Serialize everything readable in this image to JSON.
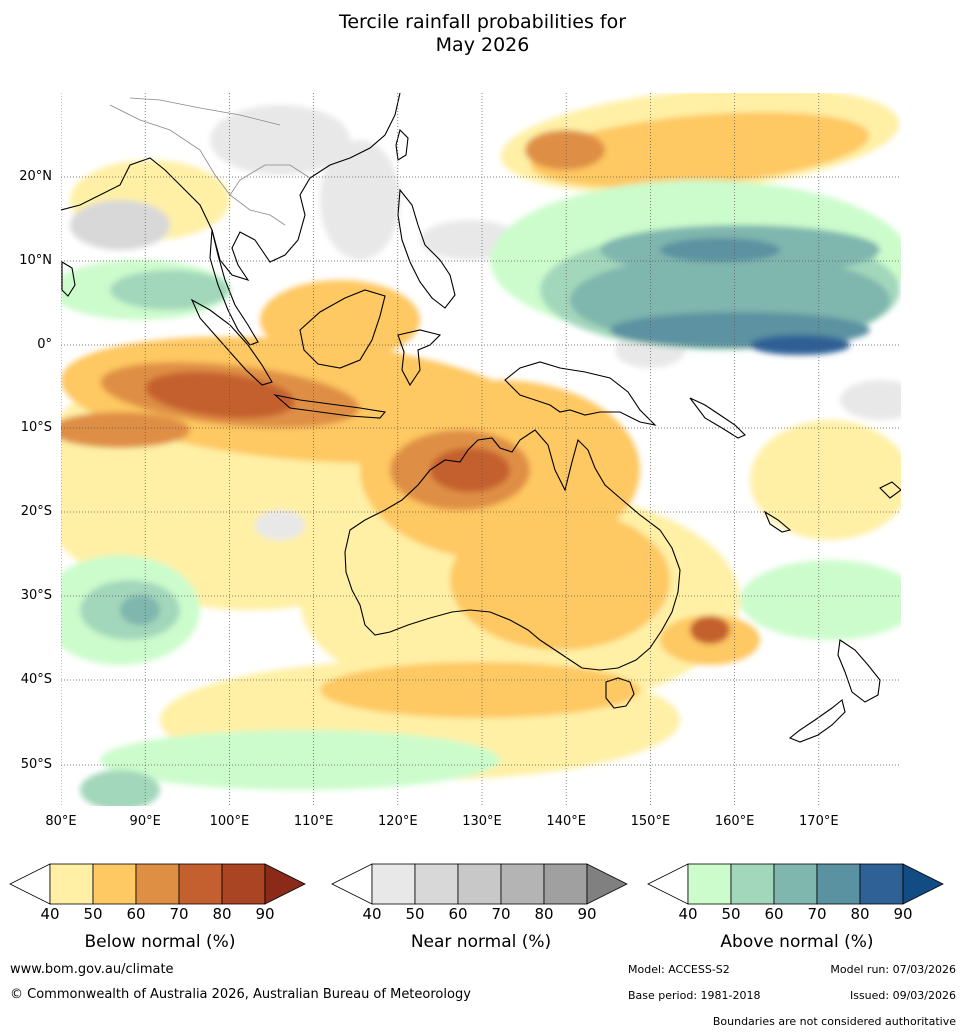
{
  "title_line1": "Tercile rainfall probabilities for",
  "title_line2": "May 2026",
  "lat_labels": [
    "20°N",
    "10°N",
    "0°",
    "10°S",
    "20°S",
    "30°S",
    "40°S",
    "50°S"
  ],
  "lon_labels": [
    "80°E",
    "90°E",
    "100°E",
    "110°E",
    "120°E",
    "130°E",
    "140°E",
    "150°E",
    "160°E",
    "170°E"
  ],
  "legends": [
    {
      "title": "Below normal (%)",
      "ticks": [
        "40",
        "50",
        "60",
        "70",
        "80",
        "90"
      ],
      "colors": [
        "#ffffff",
        "#fff0a6",
        "#fec862",
        "#df8f44",
        "#c4602f",
        "#ab4423",
        "#8b2a19"
      ]
    },
    {
      "title": "Near normal (%)",
      "ticks": [
        "40",
        "50",
        "60",
        "70",
        "80",
        "90"
      ],
      "colors": [
        "#ffffff",
        "#e8e8e8",
        "#d8d8d8",
        "#c8c8c8",
        "#b4b4b4",
        "#a0a0a0",
        "#808080"
      ]
    },
    {
      "title": "Above normal (%)",
      "ticks": [
        "40",
        "50",
        "60",
        "70",
        "80",
        "90"
      ],
      "colors": [
        "#ffffff",
        "#ccfccc",
        "#a3d7bb",
        "#7fb6ae",
        "#5b92a1",
        "#2f6197",
        "#124c85"
      ]
    }
  ],
  "footer": {
    "website": "www.bom.gov.au/climate",
    "copyright": "© Commonwealth of Australia 2026, Australian Bureau of Meteorology",
    "model": "Model: ACCESS-S2",
    "model_run": "Model run: 07/03/2026",
    "base_period": "Base period: 1981-2018",
    "issued": "Issued: 09/03/2026",
    "disclaimer": "Boundaries are not considered authoritative"
  }
}
